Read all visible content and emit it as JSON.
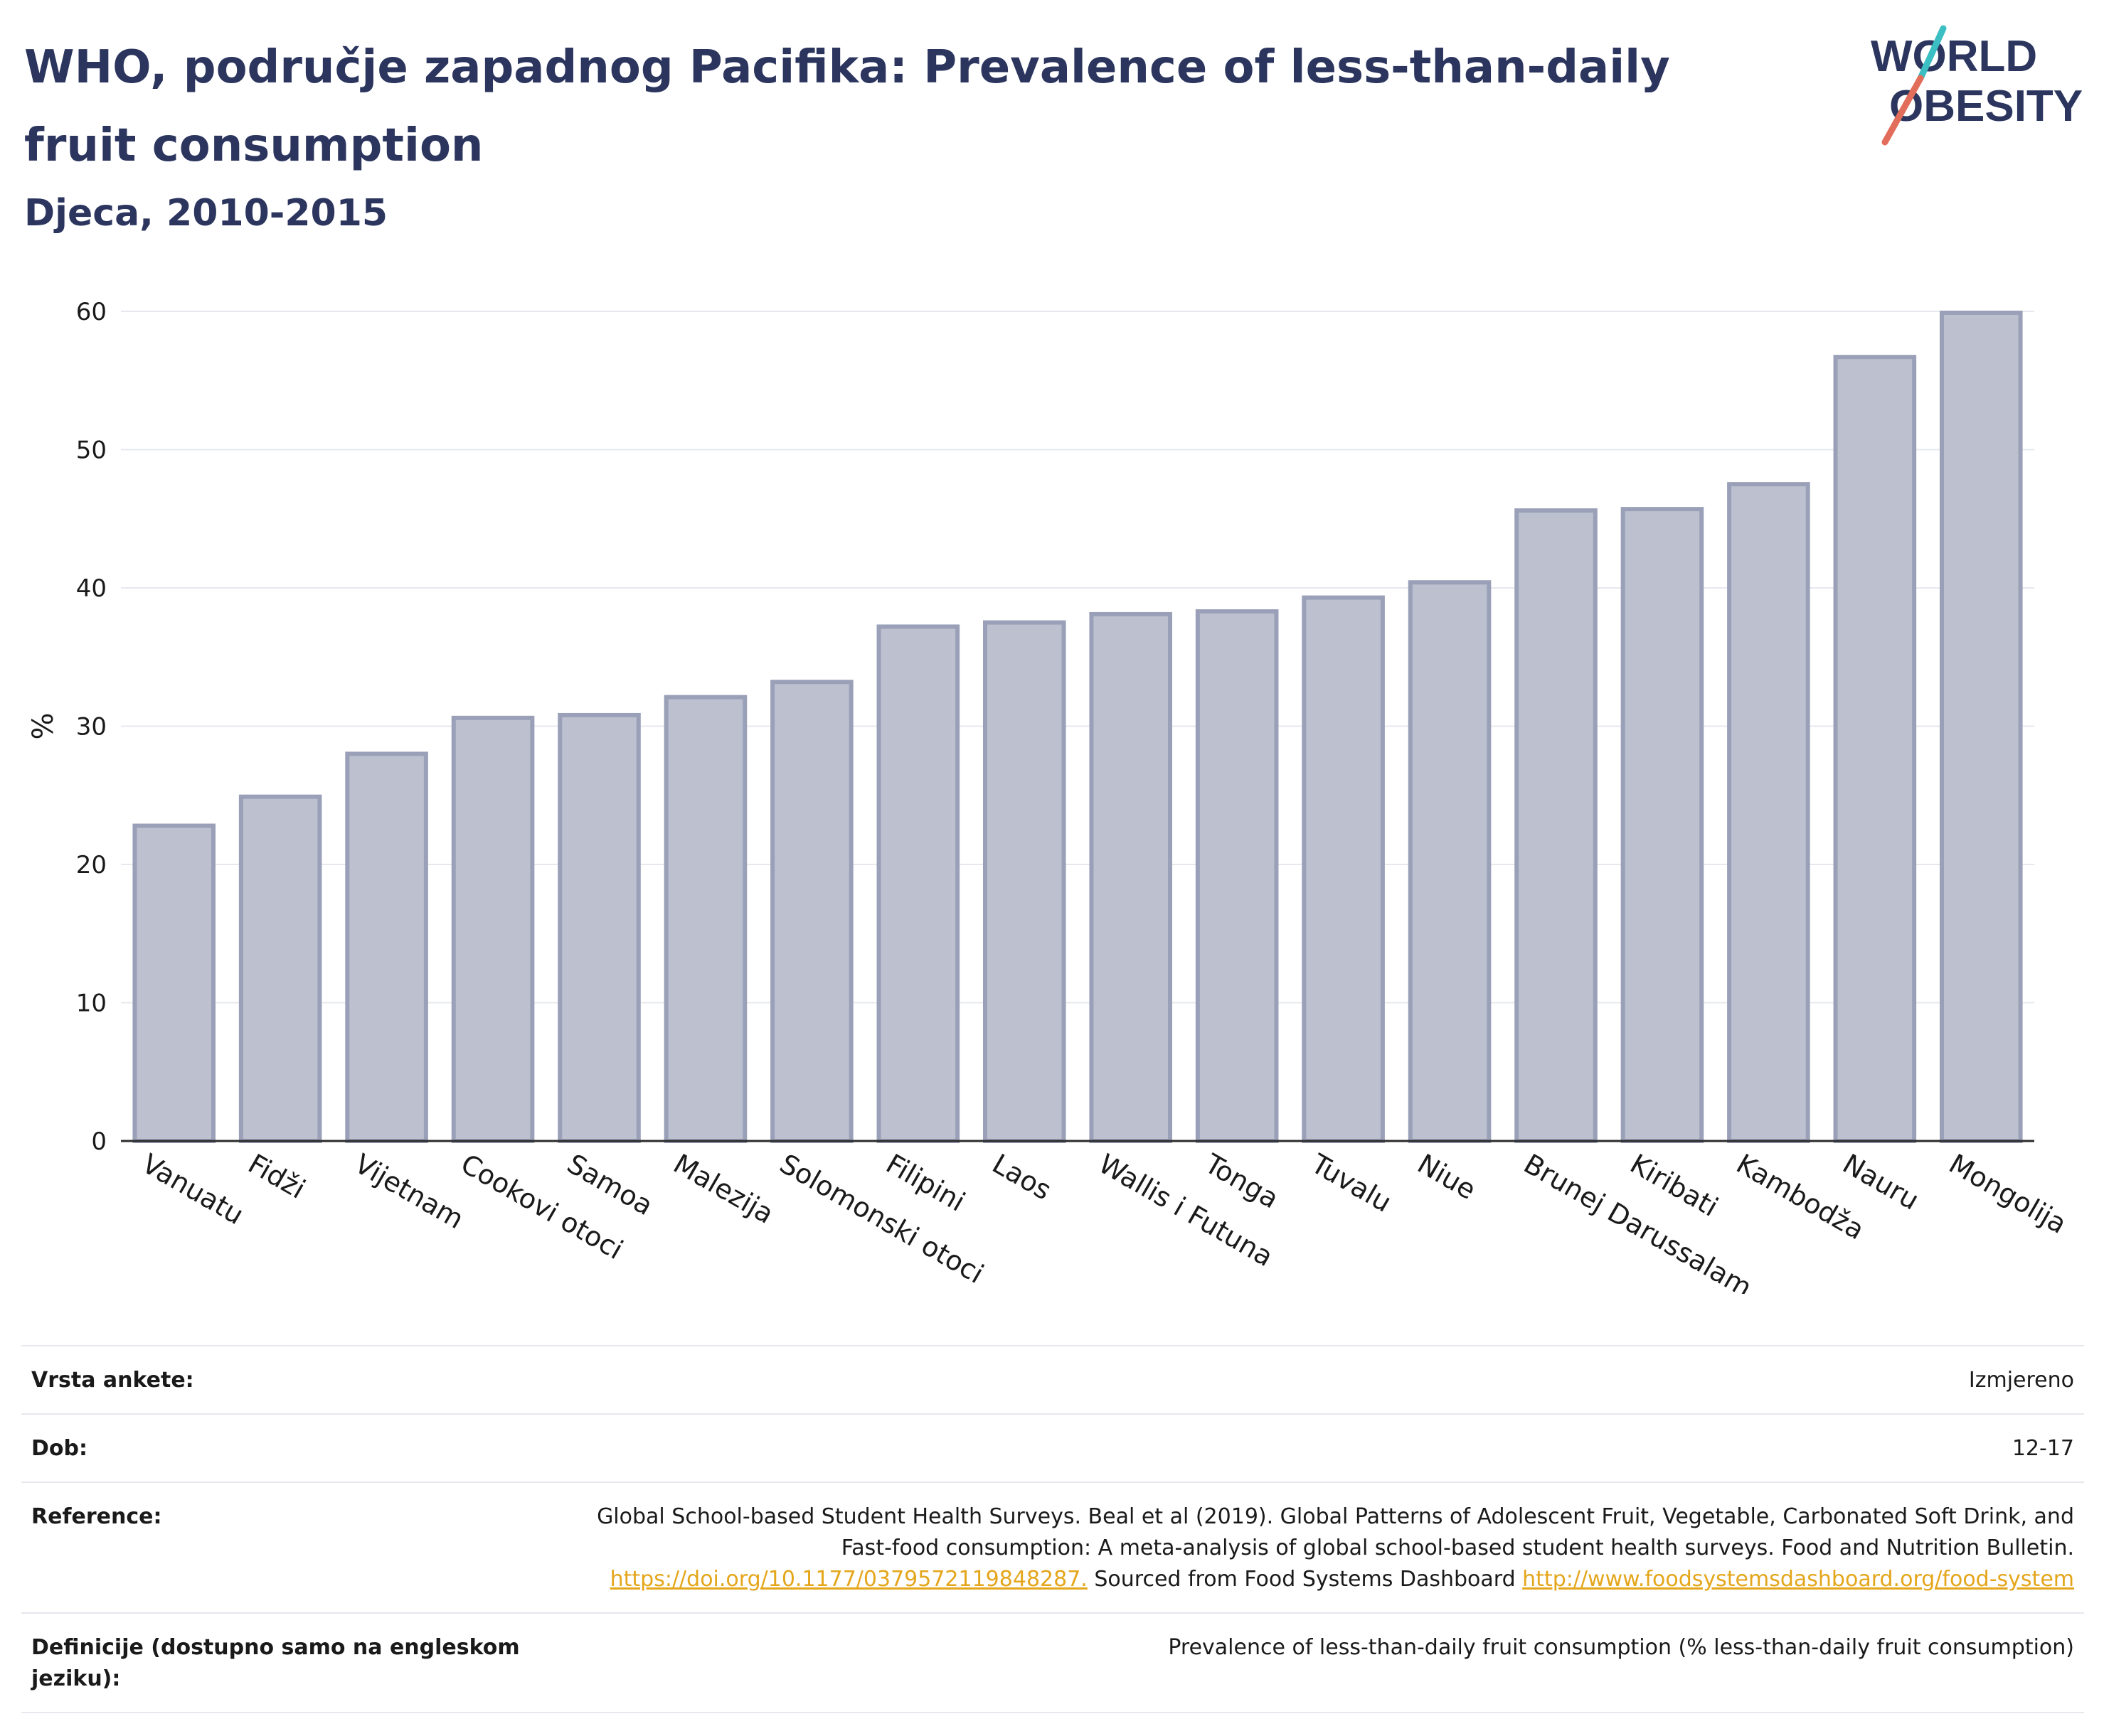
{
  "header": {
    "title": "WHO, područje zapadnog Pacifika: Prevalence of less-than-daily fruit consumption",
    "subtitle": "Djeca, 2010-2015"
  },
  "logo": {
    "line1": "WORLD",
    "line2": "OBESITY",
    "text_color": "#2b355e",
    "accent_teal": "#3bbfc3",
    "accent_coral": "#e26d5a"
  },
  "chart_data": {
    "type": "bar",
    "categories": [
      "Vanuatu",
      "Fidži",
      "Vijetnam",
      "Cookovi otoci",
      "Samoa",
      "Malezija",
      "Solomonski otoci",
      "Filipini",
      "Laos",
      "Wallis i Futuna",
      "Tonga",
      "Tuvalu",
      "Niue",
      "Brunej Darussalam",
      "Kiribati",
      "Kambodža",
      "Nauru",
      "Mongolija"
    ],
    "values": [
      22.8,
      24.9,
      28.0,
      30.6,
      30.8,
      32.1,
      33.2,
      37.2,
      37.5,
      38.1,
      38.3,
      39.3,
      40.4,
      45.6,
      45.7,
      47.5,
      56.7,
      59.9
    ],
    "ylabel": "%",
    "xlabel": "",
    "ylim": [
      0,
      60
    ],
    "yticks": [
      0,
      10,
      20,
      30,
      40,
      50,
      60
    ],
    "grid": true,
    "bar_fill": "#bcc0cf",
    "bar_stroke": "#9aa0b8"
  },
  "info": {
    "survey_type_label": "Vrsta ankete:",
    "survey_type_value": "Izmjereno",
    "age_label": "Dob:",
    "age_value": "12-17",
    "reference_label": "Reference:",
    "reference_text": "Global School-based Student Health Surveys. Beal et al (2019). Global Patterns of Adolescent Fruit, Vegetable, Carbonated Soft Drink, and Fast-food consumption: A meta-analysis of global school-based student health surveys. Food and Nutrition Bulletin.",
    "reference_link1": "https://doi.org/10.1177/0379572119848287.",
    "reference_mid": " Sourced from Food Systems Dashboard ",
    "reference_link2": "http://www.foodsystemsdashboard.org/food-system",
    "definition_label": "Definicije (dostupno samo na engleskom jeziku):",
    "definition_value": "Prevalence of less-than-daily fruit consumption (% less-than-daily fruit consumption)"
  }
}
